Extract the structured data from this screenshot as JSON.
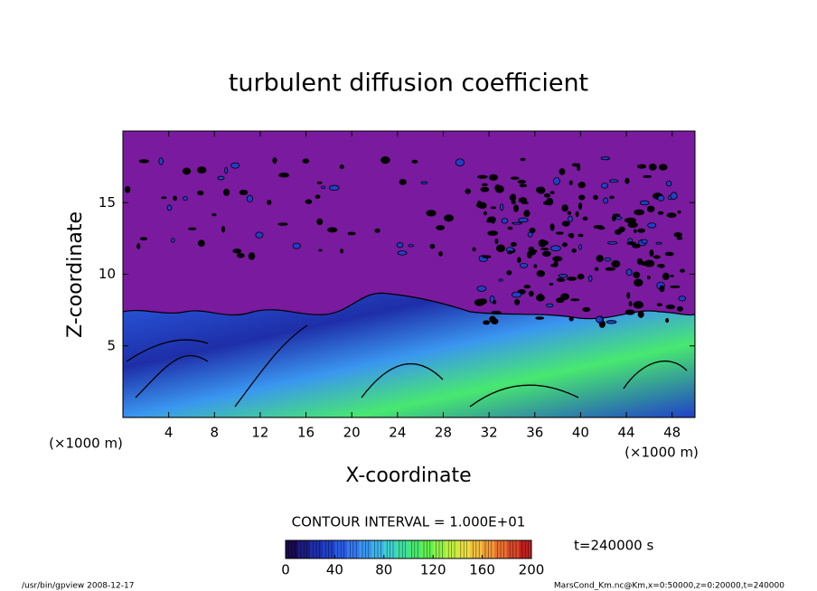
{
  "chart_data": {
    "type": "contour",
    "title": "turbulent diffusion coefficient",
    "xlabel": "X-coordinate",
    "ylabel": "Z-coordinate",
    "unit_labels": [
      "(×1000 m)",
      "(×1000 m)"
    ],
    "xlim": [
      0,
      50
    ],
    "xticks": [
      4,
      8,
      12,
      16,
      20,
      24,
      28,
      32,
      36,
      40,
      44,
      48
    ],
    "ylim": [
      0,
      20
    ],
    "yticks": [
      5,
      10,
      15
    ],
    "contour_note": "CONTOUR INTERVAL = 1.000E+01",
    "time_label": "t=240000 s",
    "colorbar": {
      "lim": [
        0,
        200
      ],
      "ticks": [
        0,
        40,
        80,
        120,
        160,
        200
      ],
      "colors": [
        "#1a0a50",
        "#1c1c80",
        "#1e2ea8",
        "#2040c8",
        "#2a5ce0",
        "#3478f0",
        "#3a96f0",
        "#3cb4e8",
        "#40d0d0",
        "#40e0a0",
        "#48e870",
        "#60f050",
        "#90f048",
        "#c0f040",
        "#e8e040",
        "#f0c040",
        "#f09a38",
        "#e87030",
        "#d84828",
        "#c02020"
      ]
    },
    "footer_left": "/usr/bin/gpview   2008-12-17",
    "footer_right": "MarsCond_Km.nc@Km,x=0:50000,z=0:20000,t=240000"
  }
}
